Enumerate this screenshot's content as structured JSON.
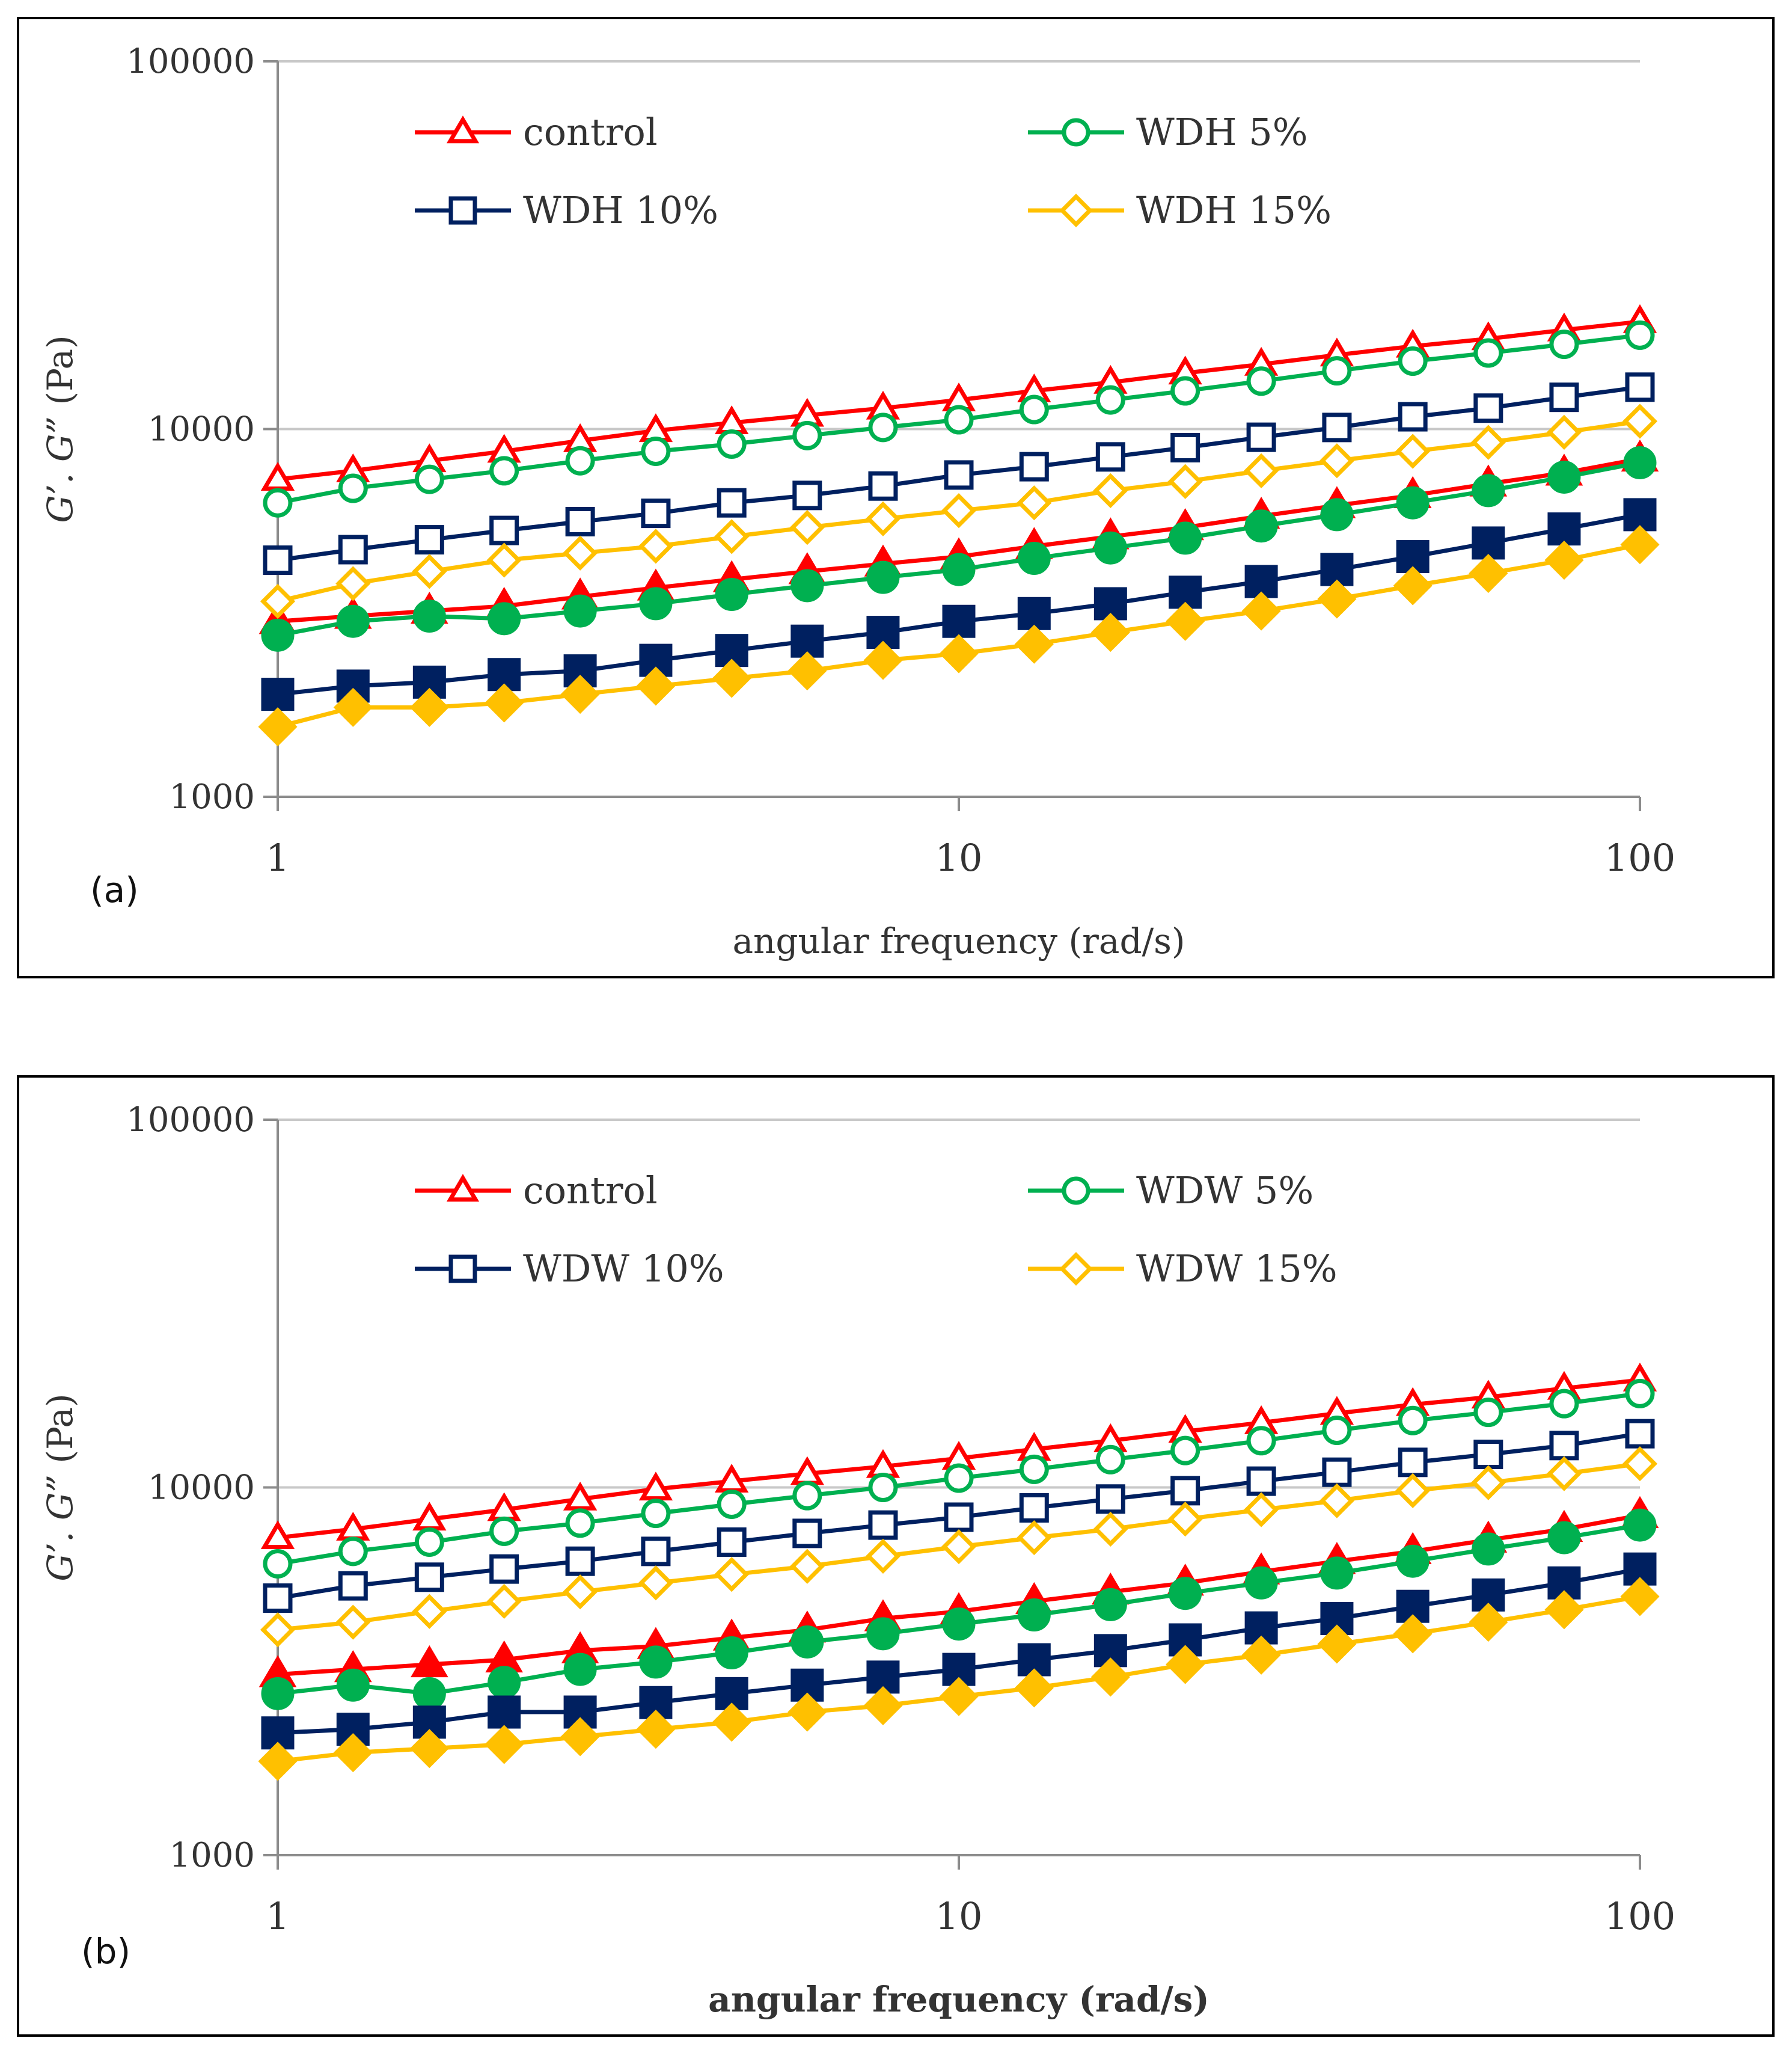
{
  "chart_data": [
    {
      "type": "line",
      "panel_label": "(a)",
      "xlabel": "angular frequency (rad/s)",
      "xlabel_bold": false,
      "ylabel_parts": [
        "G’. G”",
        "(Pa)"
      ],
      "xscale": "log",
      "yscale": "log",
      "xlim": [
        1,
        100
      ],
      "ylim": [
        1000,
        100000
      ],
      "x_ticks": [
        "1",
        "10",
        "100"
      ],
      "y_ticks": [
        "1000",
        "10000",
        "100000"
      ],
      "grid": "horizontal",
      "legend_position": "top",
      "x": [
        1,
        1.29,
        1.67,
        2.15,
        2.78,
        3.59,
        4.64,
        5.99,
        7.74,
        10,
        12.9,
        16.7,
        21.5,
        27.8,
        35.9,
        46.4,
        59.9,
        77.4,
        100
      ],
      "series": [
        {
          "name": "control",
          "color": "#ff0000",
          "marker": "triangle",
          "modulus": "G'",
          "filled": false,
          "values": [
            7300,
            7700,
            8200,
            8700,
            9300,
            9900,
            10400,
            10900,
            11400,
            12000,
            12700,
            13400,
            14200,
            15000,
            15900,
            16800,
            17600,
            18600,
            19600
          ]
        },
        {
          "name": "WDH 5%",
          "color": "#00b050",
          "marker": "circle",
          "modulus": "G'",
          "filled": false,
          "values": [
            6300,
            6900,
            7300,
            7700,
            8200,
            8700,
            9100,
            9600,
            10100,
            10600,
            11300,
            12000,
            12700,
            13500,
            14400,
            15300,
            16100,
            17000,
            18000
          ]
        },
        {
          "name": "WDH 10%",
          "color": "#002060",
          "marker": "square",
          "modulus": "G'",
          "filled": false,
          "values": [
            4400,
            4700,
            5000,
            5300,
            5600,
            5900,
            6300,
            6600,
            7000,
            7500,
            7900,
            8400,
            8900,
            9500,
            10100,
            10800,
            11400,
            12200,
            13000
          ]
        },
        {
          "name": "WDH 15%",
          "color": "#ffc000",
          "marker": "diamond",
          "modulus": "G'",
          "filled": false,
          "values": [
            3400,
            3800,
            4100,
            4400,
            4600,
            4800,
            5100,
            5400,
            5700,
            6000,
            6300,
            6800,
            7200,
            7700,
            8200,
            8700,
            9200,
            9800,
            10500
          ]
        },
        {
          "name": "control",
          "color": "#ff0000",
          "marker": "triangle",
          "modulus": "G\"",
          "filled": true,
          "values": [
            3000,
            3100,
            3200,
            3300,
            3500,
            3700,
            3900,
            4100,
            4300,
            4500,
            4800,
            5100,
            5400,
            5800,
            6200,
            6600,
            7100,
            7600,
            8300
          ]
        },
        {
          "name": "WDH 5%",
          "color": "#00b050",
          "marker": "circle",
          "modulus": "G\"",
          "filled": true,
          "values": [
            2750,
            3000,
            3100,
            3050,
            3200,
            3350,
            3550,
            3750,
            3950,
            4150,
            4450,
            4750,
            5050,
            5450,
            5850,
            6300,
            6800,
            7400,
            8100
          ]
        },
        {
          "name": "WDH 10%",
          "color": "#002060",
          "marker": "square",
          "modulus": "G\"",
          "filled": true,
          "values": [
            1900,
            2000,
            2050,
            2150,
            2200,
            2350,
            2500,
            2650,
            2800,
            3000,
            3150,
            3350,
            3600,
            3850,
            4150,
            4500,
            4900,
            5350,
            5850
          ]
        },
        {
          "name": "WDH 15%",
          "color": "#ffc000",
          "marker": "diamond",
          "modulus": "G\"",
          "filled": true,
          "values": [
            1550,
            1750,
            1750,
            1800,
            1900,
            2000,
            2100,
            2200,
            2350,
            2450,
            2600,
            2800,
            3000,
            3200,
            3450,
            3750,
            4050,
            4400,
            4850
          ]
        }
      ]
    },
    {
      "type": "line",
      "panel_label": "(b)",
      "xlabel": "angular frequency (rad/s)",
      "xlabel_bold": true,
      "ylabel_parts": [
        "G’. G”",
        "(Pa)"
      ],
      "xscale": "log",
      "yscale": "log",
      "xlim": [
        1,
        100
      ],
      "ylim": [
        1000,
        100000
      ],
      "x_ticks": [
        "1",
        "10",
        "100"
      ],
      "y_ticks": [
        "1000",
        "10000",
        "100000"
      ],
      "grid": "horizontal",
      "legend_position": "top",
      "x": [
        1,
        1.29,
        1.67,
        2.15,
        2.78,
        3.59,
        4.64,
        5.99,
        7.74,
        10,
        12.9,
        16.7,
        21.5,
        27.8,
        35.9,
        46.4,
        59.9,
        77.4,
        100
      ],
      "series": [
        {
          "name": "control",
          "color": "#ff0000",
          "marker": "triangle",
          "modulus": "G'",
          "filled": false,
          "values": [
            7300,
            7700,
            8200,
            8700,
            9300,
            9900,
            10400,
            10900,
            11400,
            12000,
            12700,
            13400,
            14200,
            15000,
            15900,
            16800,
            17600,
            18600,
            19600
          ]
        },
        {
          "name": "WDW 5%",
          "color": "#00b050",
          "marker": "circle",
          "modulus": "G'",
          "filled": false,
          "values": [
            6200,
            6700,
            7100,
            7600,
            8000,
            8500,
            9000,
            9500,
            10000,
            10600,
            11200,
            11900,
            12600,
            13400,
            14300,
            15200,
            16000,
            16900,
            18000
          ]
        },
        {
          "name": "WDW 10%",
          "color": "#002060",
          "marker": "square",
          "modulus": "G'",
          "filled": false,
          "values": [
            5000,
            5400,
            5700,
            6000,
            6300,
            6700,
            7100,
            7500,
            7900,
            8300,
            8800,
            9300,
            9800,
            10400,
            11000,
            11700,
            12300,
            13000,
            14000
          ]
        },
        {
          "name": "WDW 15%",
          "color": "#ffc000",
          "marker": "diamond",
          "modulus": "G'",
          "filled": false,
          "values": [
            4100,
            4300,
            4600,
            4900,
            5200,
            5500,
            5800,
            6100,
            6500,
            6900,
            7300,
            7700,
            8200,
            8700,
            9200,
            9800,
            10300,
            10900,
            11600
          ]
        },
        {
          "name": "control",
          "color": "#ff0000",
          "marker": "triangle",
          "modulus": "G\"",
          "filled": true,
          "values": [
            3100,
            3200,
            3300,
            3400,
            3600,
            3700,
            3900,
            4100,
            4400,
            4600,
            4900,
            5200,
            5500,
            5900,
            6300,
            6700,
            7200,
            7700,
            8400
          ]
        },
        {
          "name": "WDW 5%",
          "color": "#00b050",
          "marker": "circle",
          "modulus": "G\"",
          "filled": true,
          "values": [
            2750,
            2900,
            2750,
            2950,
            3200,
            3350,
            3550,
            3800,
            4000,
            4250,
            4500,
            4800,
            5150,
            5500,
            5850,
            6300,
            6800,
            7300,
            7900
          ]
        },
        {
          "name": "WDW 10%",
          "color": "#002060",
          "marker": "square",
          "modulus": "G\"",
          "filled": true,
          "values": [
            2150,
            2200,
            2300,
            2450,
            2450,
            2600,
            2750,
            2900,
            3050,
            3200,
            3400,
            3600,
            3850,
            4150,
            4400,
            4750,
            5100,
            5500,
            6000
          ]
        },
        {
          "name": "WDW 15%",
          "color": "#ffc000",
          "marker": "diamond",
          "modulus": "G\"",
          "filled": true,
          "values": [
            1800,
            1900,
            1950,
            2000,
            2100,
            2200,
            2300,
            2450,
            2550,
            2700,
            2850,
            3050,
            3300,
            3500,
            3750,
            4000,
            4300,
            4650,
            5050
          ]
        }
      ]
    }
  ]
}
